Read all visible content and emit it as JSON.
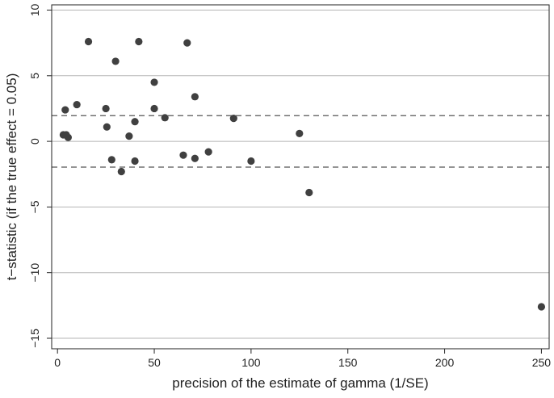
{
  "chart_data": {
    "type": "scatter",
    "title": "",
    "xlabel": "precision of the estimate of gamma (1/SE)",
    "ylabel": "t−statistic (if the true effect = 0.05)",
    "xlim": [
      -3,
      254
    ],
    "ylim": [
      -15.8,
      10.4
    ],
    "xticks": [
      0,
      50,
      100,
      150,
      200,
      250
    ],
    "yticks": [
      10,
      5,
      0,
      -5,
      -10,
      -15
    ],
    "xtick_labels": [
      "0",
      "50",
      "100",
      "150",
      "200",
      "250"
    ],
    "ytick_labels": [
      "10",
      "5",
      "0",
      "−5",
      "−10",
      "−15"
    ],
    "grid": "horizontal",
    "reference_lines": [
      1.96,
      -1.96
    ],
    "marker_color": "#404040",
    "points": [
      {
        "x": 3,
        "y": 0.5
      },
      {
        "x": 4,
        "y": 2.4
      },
      {
        "x": 4.5,
        "y": 0.5
      },
      {
        "x": 5.5,
        "y": 0.3
      },
      {
        "x": 10,
        "y": 2.8
      },
      {
        "x": 16,
        "y": 7.6
      },
      {
        "x": 25,
        "y": 2.5
      },
      {
        "x": 25.5,
        "y": 1.1
      },
      {
        "x": 28,
        "y": -1.4
      },
      {
        "x": 30,
        "y": 6.1
      },
      {
        "x": 33,
        "y": -2.3
      },
      {
        "x": 37,
        "y": 0.4
      },
      {
        "x": 40,
        "y": 1.5
      },
      {
        "x": 40,
        "y": -1.5
      },
      {
        "x": 42,
        "y": 7.6
      },
      {
        "x": 50,
        "y": 4.5
      },
      {
        "x": 50,
        "y": 2.5
      },
      {
        "x": 55.5,
        "y": 1.8
      },
      {
        "x": 65,
        "y": -1.05
      },
      {
        "x": 67,
        "y": 7.5
      },
      {
        "x": 71,
        "y": 3.4
      },
      {
        "x": 71,
        "y": -1.3
      },
      {
        "x": 78,
        "y": -0.8
      },
      {
        "x": 91,
        "y": 1.75
      },
      {
        "x": 100,
        "y": -1.5
      },
      {
        "x": 125,
        "y": 0.6
      },
      {
        "x": 130,
        "y": -3.9
      },
      {
        "x": 250,
        "y": -12.6
      }
    ]
  }
}
